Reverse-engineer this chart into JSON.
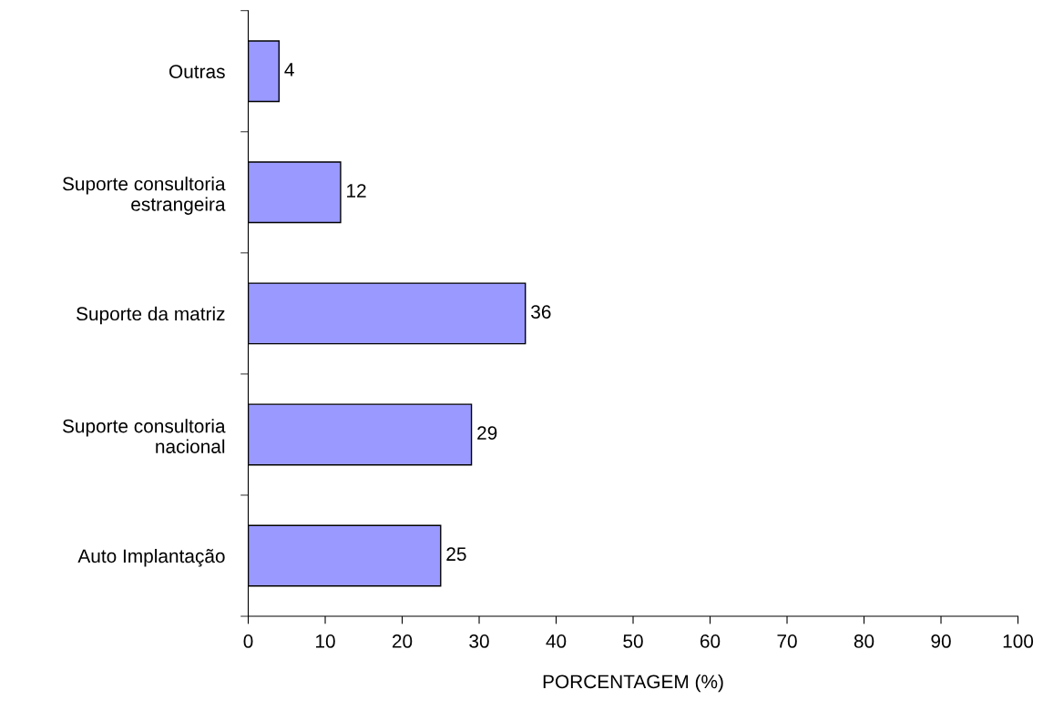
{
  "chart_data": {
    "type": "bar",
    "orientation": "horizontal",
    "xlabel": "PORCENTAGEM (%)",
    "categories": [
      "Outras",
      "Suporte consultoria\nestrangeira",
      "Suporte da matriz",
      "Suporte consultoria\nnacional",
      "Auto Implantação"
    ],
    "values": [
      4,
      12,
      36,
      29,
      25
    ],
    "color": "#9999ff",
    "data_labels": true,
    "xlim": [
      0,
      100
    ],
    "xticks": [
      0,
      10,
      20,
      30,
      40,
      50,
      60,
      70,
      80,
      90,
      100
    ],
    "grid": false,
    "legend": false
  }
}
